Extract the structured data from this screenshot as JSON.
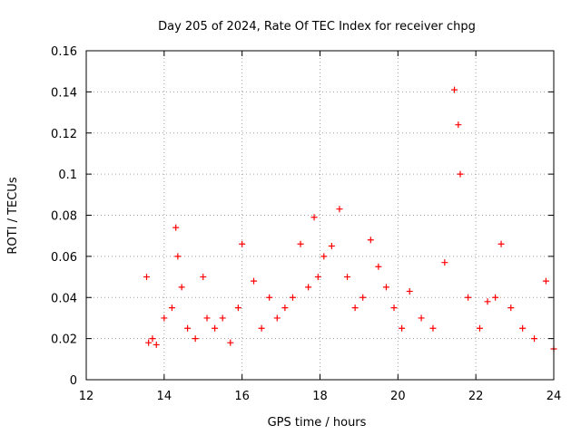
{
  "chart_data": {
    "type": "scatter",
    "title": "Day 205 of 2024, Rate Of TEC Index for receiver chpg",
    "xlabel": "GPS time / hours",
    "ylabel": "ROTI / TECUs",
    "xlim": [
      12,
      24
    ],
    "ylim": [
      0,
      0.16
    ],
    "grid": true,
    "marker": "+",
    "color": "#ff0000",
    "x_ticks": [
      "12",
      "14",
      "16",
      "18",
      "20",
      "22",
      "24"
    ],
    "y_ticks": [
      "0",
      "0.02",
      "0.04",
      "0.06",
      "0.08",
      "0.1",
      "0.12",
      "0.14",
      "0.16"
    ],
    "series": [
      {
        "name": "ROTI",
        "x": [
          13.55,
          13.6,
          13.7,
          13.8,
          14.0,
          14.2,
          14.3,
          14.35,
          14.45,
          14.6,
          14.8,
          15.0,
          15.1,
          15.3,
          15.5,
          15.7,
          15.9,
          16.0,
          16.3,
          16.5,
          16.7,
          16.9,
          17.1,
          17.3,
          17.5,
          17.7,
          17.85,
          17.95,
          18.1,
          18.3,
          18.5,
          18.7,
          18.9,
          19.1,
          19.3,
          19.5,
          19.7,
          19.9,
          20.1,
          20.3,
          20.6,
          20.9,
          21.2,
          21.45,
          21.55,
          21.6,
          21.8,
          22.1,
          22.3,
          22.5,
          22.65,
          22.9,
          23.2,
          23.5,
          23.8,
          24.0
        ],
        "y": [
          0.05,
          0.018,
          0.02,
          0.017,
          0.03,
          0.035,
          0.074,
          0.06,
          0.045,
          0.025,
          0.02,
          0.05,
          0.03,
          0.025,
          0.03,
          0.018,
          0.035,
          0.066,
          0.048,
          0.025,
          0.04,
          0.03,
          0.035,
          0.04,
          0.066,
          0.045,
          0.079,
          0.05,
          0.06,
          0.065,
          0.083,
          0.05,
          0.035,
          0.04,
          0.068,
          0.055,
          0.045,
          0.035,
          0.025,
          0.043,
          0.03,
          0.025,
          0.057,
          0.141,
          0.124,
          0.1,
          0.04,
          0.025,
          0.038,
          0.04,
          0.066,
          0.035,
          0.025,
          0.02,
          0.048,
          0.015
        ]
      }
    ]
  }
}
